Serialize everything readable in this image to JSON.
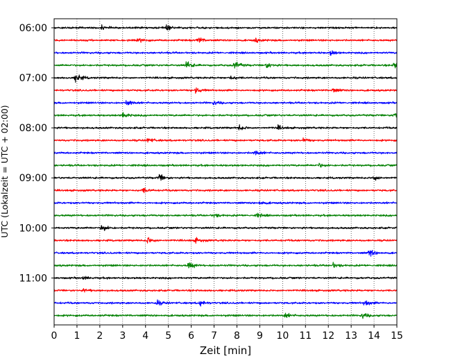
{
  "chart_data": {
    "type": "line",
    "subtype": "helicorder",
    "xlabel": "Zeit  [min]",
    "ylabel": "UTC (Lokalzeit = UTC + 02:00)",
    "xlim": [
      0,
      15
    ],
    "x_ticks": [
      0,
      1,
      2,
      3,
      4,
      5,
      6,
      7,
      8,
      9,
      10,
      11,
      12,
      13,
      14,
      15
    ],
    "x_grid": "dotted vertical at each minute",
    "y_tick_labels": [
      "06:00",
      "07:00",
      "08:00",
      "09:00",
      "10:00",
      "11:00"
    ],
    "trace_interval_minutes": 15,
    "trace_start_times": [
      "06:00",
      "06:15",
      "06:30",
      "06:45",
      "07:00",
      "07:15",
      "07:30",
      "07:45",
      "08:00",
      "08:15",
      "08:30",
      "08:45",
      "09:00",
      "09:15",
      "09:30",
      "09:45",
      "10:00",
      "10:15",
      "10:30",
      "10:45",
      "11:00",
      "11:15",
      "11:30",
      "11:45"
    ],
    "colors_cycle": [
      "#000000",
      "#ff0000",
      "#0000ff",
      "#008000"
    ],
    "events": [
      {
        "trace": 0,
        "minute": 2.1,
        "amp": 5
      },
      {
        "trace": 0,
        "minute": 4.9,
        "amp": 5
      },
      {
        "trace": 1,
        "minute": 6.3,
        "amp": 7
      },
      {
        "trace": 1,
        "minute": 3.7,
        "amp": 4
      },
      {
        "trace": 1,
        "minute": 8.8,
        "amp": 4
      },
      {
        "trace": 2,
        "minute": 12.1,
        "amp": 5
      },
      {
        "trace": 3,
        "minute": 5.8,
        "amp": 8
      },
      {
        "trace": 3,
        "minute": 7.9,
        "amp": 9
      },
      {
        "trace": 3,
        "minute": 9.3,
        "amp": 6
      },
      {
        "trace": 3,
        "minute": 14.9,
        "amp": 8
      },
      {
        "trace": 4,
        "minute": 0.95,
        "amp": 11
      },
      {
        "trace": 4,
        "minute": 7.7,
        "amp": 5
      },
      {
        "trace": 5,
        "minute": 6.2,
        "amp": 6
      },
      {
        "trace": 5,
        "minute": 12.2,
        "amp": 5
      },
      {
        "trace": 6,
        "minute": 3.2,
        "amp": 8
      },
      {
        "trace": 6,
        "minute": 7.0,
        "amp": 4
      },
      {
        "trace": 7,
        "minute": 3.0,
        "amp": 7
      },
      {
        "trace": 7,
        "minute": 14.9,
        "amp": 7
      },
      {
        "trace": 8,
        "minute": 8.1,
        "amp": 6
      },
      {
        "trace": 8,
        "minute": 9.8,
        "amp": 4
      },
      {
        "trace": 9,
        "minute": 4.1,
        "amp": 5
      },
      {
        "trace": 9,
        "minute": 10.9,
        "amp": 4
      },
      {
        "trace": 10,
        "minute": 8.8,
        "amp": 6
      },
      {
        "trace": 11,
        "minute": 11.6,
        "amp": 4
      },
      {
        "trace": 12,
        "minute": 4.6,
        "amp": 8
      },
      {
        "trace": 12,
        "minute": 14.0,
        "amp": 6
      },
      {
        "trace": 13,
        "minute": 3.9,
        "amp": 5
      },
      {
        "trace": 14,
        "minute": 9.0,
        "amp": 4
      },
      {
        "trace": 15,
        "minute": 7.0,
        "amp": 4
      },
      {
        "trace": 15,
        "minute": 8.9,
        "amp": 4
      },
      {
        "trace": 16,
        "minute": 2.1,
        "amp": 8
      },
      {
        "trace": 17,
        "minute": 4.1,
        "amp": 7
      },
      {
        "trace": 17,
        "minute": 6.2,
        "amp": 5
      },
      {
        "trace": 18,
        "minute": 13.8,
        "amp": 8
      },
      {
        "trace": 19,
        "minute": 5.9,
        "amp": 8
      },
      {
        "trace": 19,
        "minute": 12.2,
        "amp": 5
      },
      {
        "trace": 20,
        "minute": 1.3,
        "amp": 3
      },
      {
        "trace": 21,
        "minute": 1.3,
        "amp": 3
      },
      {
        "trace": 22,
        "minute": 6.4,
        "amp": 6
      },
      {
        "trace": 22,
        "minute": 13.6,
        "amp": 6
      },
      {
        "trace": 22,
        "minute": 4.5,
        "amp": 5
      },
      {
        "trace": 23,
        "minute": 10.1,
        "amp": 5
      },
      {
        "trace": 23,
        "minute": 13.5,
        "amp": 6
      }
    ],
    "grid": true
  }
}
